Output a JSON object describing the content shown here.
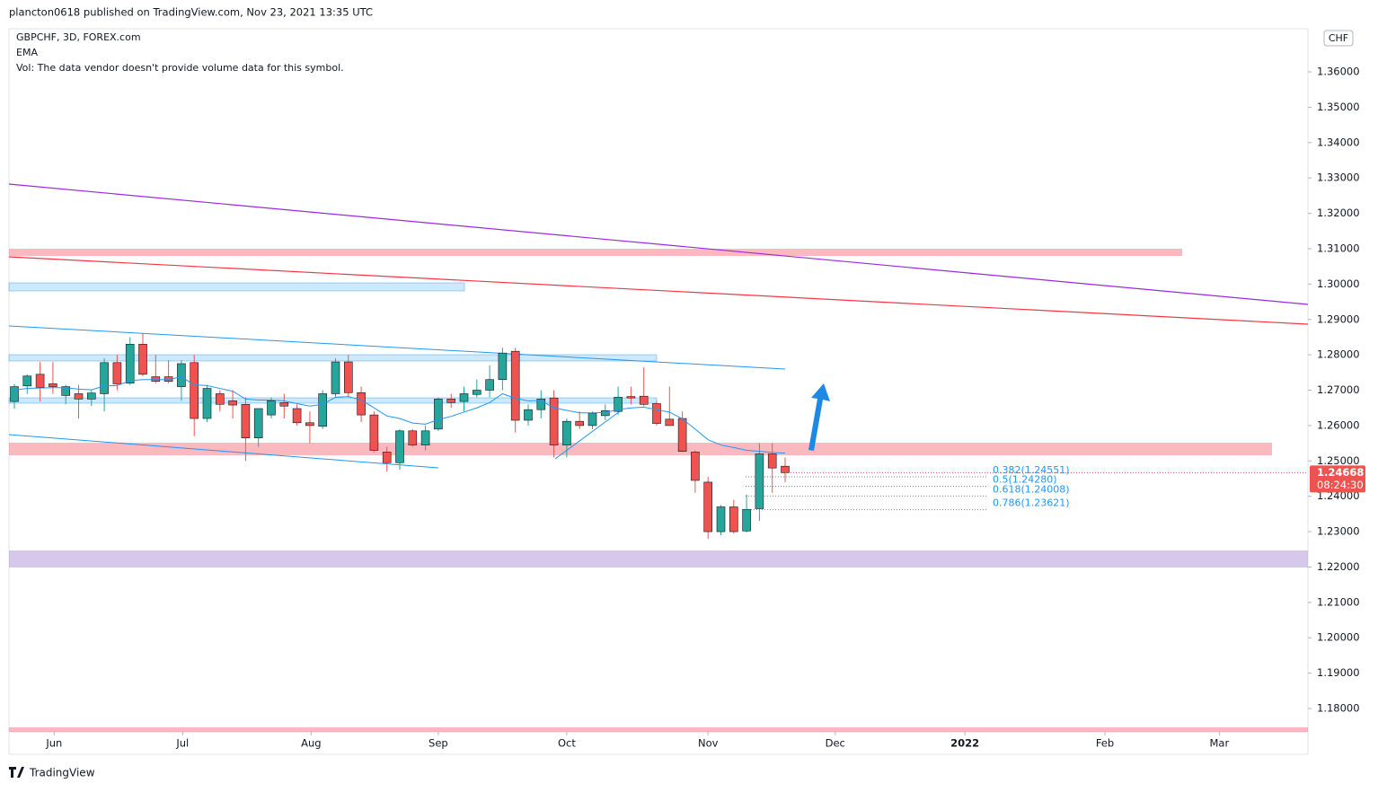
{
  "chart_data": {
    "type": "candlestick",
    "header": "plancton0618 published on TradingView.com, Nov 23, 2021 13:35 UTC",
    "title": "GBPCHF, 3D, FOREX.com",
    "indicator": "EMA",
    "volume_note": "Vol: The data vendor doesn't provide volume data for this symbol.",
    "currency": "CHF",
    "logo": "TradingView",
    "up_color": "#26a69a",
    "down_color": "#ef5350",
    "ema_color": "#2196f3",
    "open": [
      1.2668,
      1.2712,
      1.2745,
      1.2718,
      1.2685,
      1.269,
      1.2675,
      1.269,
      1.2778,
      1.272,
      1.283,
      1.2738,
      1.2738,
      1.271,
      1.2778,
      1.262,
      1.269,
      1.267,
      1.266,
      1.2565,
      1.263,
      1.2665,
      1.2648,
      1.2608,
      1.2598,
      1.269,
      1.278,
      1.2693,
      1.263,
      1.2525,
      1.2495,
      1.2585,
      1.2545,
      1.259,
      1.2675,
      1.2668,
      1.2688,
      1.27,
      1.273,
      1.281,
      1.2615,
      1.2645,
      1.2678,
      1.2545,
      1.2612,
      1.26,
      1.2628,
      1.264,
      1.2682,
      1.2683,
      1.2662,
      1.2618,
      1.262,
      1.2525,
      1.244,
      1.23,
      1.237,
      1.2302,
      1.2365,
      1.252,
      1.2485
    ],
    "high": [
      1.2718,
      1.2745,
      1.278,
      1.278,
      1.2715,
      1.2715,
      1.27,
      1.279,
      1.28,
      1.285,
      1.286,
      1.28,
      1.2785,
      1.2785,
      1.28,
      1.2715,
      1.27,
      1.27,
      1.268,
      1.264,
      1.268,
      1.269,
      1.266,
      1.264,
      1.27,
      1.279,
      1.28,
      1.271,
      1.264,
      1.254,
      1.259,
      1.259,
      1.26,
      1.268,
      1.269,
      1.271,
      1.273,
      1.277,
      1.282,
      1.282,
      1.266,
      1.27,
      1.27,
      1.262,
      1.264,
      1.264,
      1.266,
      1.271,
      1.271,
      1.2765,
      1.267,
      1.271,
      1.264,
      1.253,
      1.2455,
      1.2375,
      1.239,
      1.2405,
      1.255,
      1.255,
      1.251
    ],
    "low": [
      1.2648,
      1.269,
      1.2668,
      1.269,
      1.266,
      1.262,
      1.2655,
      1.264,
      1.27,
      1.2715,
      1.274,
      1.272,
      1.272,
      1.267,
      1.257,
      1.261,
      1.264,
      1.262,
      1.25,
      1.254,
      1.262,
      1.262,
      1.26,
      1.255,
      1.259,
      1.268,
      1.268,
      1.261,
      1.2525,
      1.247,
      1.2475,
      1.254,
      1.253,
      1.2585,
      1.265,
      1.264,
      1.268,
      1.268,
      1.27,
      1.258,
      1.26,
      1.262,
      1.251,
      1.251,
      1.259,
      1.259,
      1.2615,
      1.263,
      1.266,
      1.2655,
      1.26,
      1.26,
      1.2525,
      1.241,
      1.228,
      1.229,
      1.2295,
      1.2298,
      1.233,
      1.241,
      1.244
    ],
    "close": [
      1.271,
      1.274,
      1.2708,
      1.271,
      1.271,
      1.2675,
      1.2692,
      1.2778,
      1.2718,
      1.283,
      1.2745,
      1.2725,
      1.2725,
      1.2775,
      1.262,
      1.2705,
      1.266,
      1.2658,
      1.2565,
      1.2648,
      1.267,
      1.2655,
      1.2608,
      1.26,
      1.269,
      1.278,
      1.2693,
      1.263,
      1.253,
      1.2495,
      1.2585,
      1.2545,
      1.2585,
      1.2675,
      1.2665,
      1.269,
      1.27,
      1.273,
      1.2805,
      1.2615,
      1.2645,
      1.2675,
      1.2545,
      1.2612,
      1.26,
      1.2635,
      1.2642,
      1.268,
      1.2678,
      1.266,
      1.2606,
      1.26,
      1.2527,
      1.2445,
      1.23,
      1.237,
      1.23,
      1.2363,
      1.252,
      1.248,
      1.24668
    ],
    "ema": [
      1.27,
      1.2705,
      1.2706,
      1.2707,
      1.2707,
      1.2703,
      1.2701,
      1.2712,
      1.2713,
      1.2727,
      1.273,
      1.273,
      1.273,
      1.2738,
      1.2715,
      1.2713,
      1.2705,
      1.2697,
      1.2675,
      1.2672,
      1.2672,
      1.267,
      1.2662,
      1.2655,
      1.266,
      1.268,
      1.2682,
      1.2672,
      1.265,
      1.2627,
      1.262,
      1.2607,
      1.2604,
      1.2617,
      1.2626,
      1.2638,
      1.265,
      1.2665,
      1.269,
      1.2677,
      1.267,
      1.2671,
      1.265,
      1.2643,
      1.2636,
      1.2636,
      1.2637,
      1.2645,
      1.265,
      1.2652,
      1.2645,
      1.2638,
      1.2619,
      1.259,
      1.256,
      1.2545,
      1.2538,
      1.253,
      1.2527,
      1.2524,
      1.2522
    ],
    "xlim": [
      -0.42,
      100.7
    ],
    "xticks": [
      {
        "value": 3.1,
        "label": "Jun"
      },
      {
        "value": 13.1,
        "label": "Jul"
      },
      {
        "value": 23.1,
        "label": "Aug"
      },
      {
        "value": 33,
        "label": "Sep"
      },
      {
        "value": 43,
        "label": "Oct"
      },
      {
        "value": 54,
        "label": "Nov"
      },
      {
        "value": 63.9,
        "label": "Dec"
      },
      {
        "value": 74,
        "label": "2022"
      },
      {
        "value": 84.9,
        "label": "Feb"
      },
      {
        "value": 93.8,
        "label": "Mar"
      }
    ],
    "ylim": [
      1.1734,
      1.3722
    ],
    "yticks": [
      {
        "value": 1.18,
        "label": "1.18000"
      },
      {
        "value": 1.19,
        "label": "1.19000"
      },
      {
        "value": 1.2,
        "label": "1.20000"
      },
      {
        "value": 1.21,
        "label": "1.21000"
      },
      {
        "value": 1.22,
        "label": "1.22000"
      },
      {
        "value": 1.23,
        "label": "1.23000"
      },
      {
        "value": 1.24,
        "label": "1.24000"
      },
      {
        "value": 1.25,
        "label": "1.25000"
      },
      {
        "value": 1.26,
        "label": "1.26000"
      },
      {
        "value": 1.27,
        "label": "1.27000"
      },
      {
        "value": 1.28,
        "label": "1.28000"
      },
      {
        "value": 1.29,
        "label": "1.29000"
      },
      {
        "value": 1.3,
        "label": "1.30000"
      },
      {
        "value": 1.31,
        "label": "1.31000"
      },
      {
        "value": 1.32,
        "label": "1.32000"
      },
      {
        "value": 1.33,
        "label": "1.33000"
      },
      {
        "value": 1.34,
        "label": "1.34000"
      },
      {
        "value": 1.35,
        "label": "1.35000"
      },
      {
        "value": 1.36,
        "label": "1.36000"
      }
    ],
    "last_price": {
      "value": 1.24668,
      "label": "1.24668"
    },
    "countdown": "08:24:30",
    "fib_levels": [
      {
        "value": 1.24551,
        "label": "0.382(1.24551)"
      },
      {
        "value": 1.2428,
        "label": "0.5(1.24280)"
      },
      {
        "value": 1.24008,
        "label": "0.618(1.24008)"
      },
      {
        "value": 1.23621,
        "label": "0.786(1.23621)"
      }
    ]
  }
}
